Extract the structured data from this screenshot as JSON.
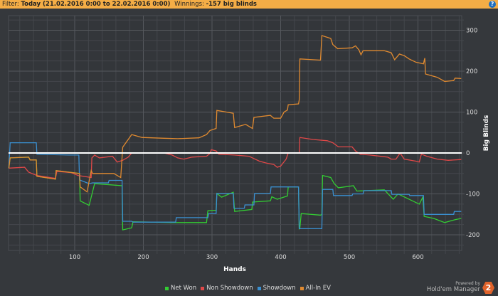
{
  "header": {
    "filter_label": "Filter:",
    "filter_value": "Today (21.02.2016 0:00 to 22.02.2016 0:00)",
    "winnings_label": "Winnings:",
    "winnings_value": "-157 big blinds",
    "help_icon": "question-circle-icon",
    "help_label": "?"
  },
  "footer": {
    "powered_by": "Powered by",
    "brand": "Hold'em Manager",
    "logo_text": "2"
  },
  "chart_data": {
    "type": "line",
    "xlabel": "Hands",
    "ylabel": "Big Blinds",
    "xlim": [
      3,
      665
    ],
    "ylim": [
      -238,
      335
    ],
    "xticks": [
      100,
      200,
      300,
      400,
      500,
      600
    ],
    "yticks": [
      -200,
      -100,
      0,
      100,
      200,
      300
    ],
    "grid": true,
    "legend_position": "bottom",
    "zero_line_color": "#ffffff",
    "series": [
      {
        "name": "Net Won",
        "color": "#33cc33",
        "points": [
          [
            4,
            -37
          ],
          [
            6,
            -12
          ],
          [
            33,
            -10
          ],
          [
            35,
            -17
          ],
          [
            44,
            -17
          ],
          [
            45,
            -57
          ],
          [
            72,
            -64
          ],
          [
            73,
            -43
          ],
          [
            107,
            -50
          ],
          [
            108,
            -117
          ],
          [
            121,
            -128
          ],
          [
            129,
            -75
          ],
          [
            169,
            -80
          ],
          [
            170,
            -188
          ],
          [
            183,
            -183
          ],
          [
            185,
            -168
          ],
          [
            243,
            -170
          ],
          [
            292,
            -170
          ],
          [
            294,
            -141
          ],
          [
            306,
            -140
          ],
          [
            307,
            -99
          ],
          [
            314,
            -108
          ],
          [
            331,
            -96
          ],
          [
            333,
            -143
          ],
          [
            358,
            -138
          ],
          [
            359,
            -120
          ],
          [
            385,
            -117
          ],
          [
            387,
            -107
          ],
          [
            395,
            -113
          ],
          [
            410,
            -105
          ],
          [
            411,
            -83
          ],
          [
            426,
            -83
          ],
          [
            427,
            -185
          ],
          [
            428,
            -183
          ],
          [
            430,
            -148
          ],
          [
            458,
            -152
          ],
          [
            460,
            -150
          ],
          [
            461,
            -55
          ],
          [
            473,
            -60
          ],
          [
            478,
            -75
          ],
          [
            484,
            -85
          ],
          [
            506,
            -80
          ],
          [
            511,
            -93
          ],
          [
            551,
            -90
          ],
          [
            564,
            -113
          ],
          [
            571,
            -100
          ],
          [
            602,
            -125
          ],
          [
            607,
            -108
          ],
          [
            609,
            -155
          ],
          [
            623,
            -160
          ],
          [
            639,
            -170
          ],
          [
            654,
            -163
          ],
          [
            663,
            -160
          ]
        ]
      },
      {
        "name": "Non Showdown",
        "color": "#e04848",
        "points": [
          [
            4,
            -37
          ],
          [
            27,
            -35
          ],
          [
            33,
            -47
          ],
          [
            45,
            -55
          ],
          [
            64,
            -60
          ],
          [
            72,
            -62
          ],
          [
            74,
            -45
          ],
          [
            95,
            -48
          ],
          [
            105,
            -55
          ],
          [
            124,
            -60
          ],
          [
            125,
            -12
          ],
          [
            129,
            -5
          ],
          [
            136,
            -12
          ],
          [
            155,
            -8
          ],
          [
            162,
            -22
          ],
          [
            170,
            -18
          ],
          [
            178,
            -10
          ],
          [
            183,
            0
          ],
          [
            230,
            0
          ],
          [
            242,
            -5
          ],
          [
            250,
            -12
          ],
          [
            259,
            -15
          ],
          [
            271,
            -10
          ],
          [
            292,
            -8
          ],
          [
            297,
            -1
          ],
          [
            299,
            8
          ],
          [
            306,
            5
          ],
          [
            310,
            -3
          ],
          [
            333,
            -5
          ],
          [
            354,
            -8
          ],
          [
            359,
            -12
          ],
          [
            369,
            -20
          ],
          [
            380,
            -25
          ],
          [
            390,
            -28
          ],
          [
            395,
            -35
          ],
          [
            400,
            -32
          ],
          [
            408,
            -15
          ],
          [
            411,
            0
          ],
          [
            427,
            0
          ],
          [
            428,
            38
          ],
          [
            447,
            33
          ],
          [
            468,
            30
          ],
          [
            476,
            25
          ],
          [
            484,
            15
          ],
          [
            504,
            15
          ],
          [
            509,
            5
          ],
          [
            516,
            -3
          ],
          [
            530,
            -5
          ],
          [
            556,
            -10
          ],
          [
            561,
            -15
          ],
          [
            568,
            -15
          ],
          [
            574,
            0
          ],
          [
            580,
            -15
          ],
          [
            597,
            -20
          ],
          [
            602,
            -22
          ],
          [
            605,
            -3
          ],
          [
            613,
            -8
          ],
          [
            628,
            -15
          ],
          [
            644,
            -18
          ],
          [
            663,
            -16
          ]
        ]
      },
      {
        "name": "Showdown",
        "color": "#3a8fd0",
        "points": [
          [
            4,
            -37
          ],
          [
            6,
            25
          ],
          [
            44,
            25
          ],
          [
            45,
            -3
          ],
          [
            91,
            -5
          ],
          [
            106,
            -5
          ],
          [
            107,
            -66
          ],
          [
            121,
            -75
          ],
          [
            126,
            -73
          ],
          [
            149,
            -73
          ],
          [
            150,
            -67
          ],
          [
            169,
            -67
          ],
          [
            170,
            -167
          ],
          [
            183,
            -167
          ],
          [
            185,
            -169
          ],
          [
            247,
            -169
          ],
          [
            248,
            -158
          ],
          [
            294,
            -158
          ],
          [
            295,
            -148
          ],
          [
            306,
            -148
          ],
          [
            307,
            -99
          ],
          [
            331,
            -99
          ],
          [
            332,
            -135
          ],
          [
            347,
            -135
          ],
          [
            348,
            -127
          ],
          [
            361,
            -127
          ],
          [
            362,
            -99
          ],
          [
            385,
            -99
          ],
          [
            386,
            -83
          ],
          [
            426,
            -83
          ],
          [
            427,
            -185
          ],
          [
            460,
            -185
          ],
          [
            461,
            -89
          ],
          [
            476,
            -89
          ],
          [
            477,
            -104
          ],
          [
            504,
            -104
          ],
          [
            505,
            -100
          ],
          [
            520,
            -100
          ],
          [
            521,
            -92
          ],
          [
            561,
            -92
          ],
          [
            562,
            -101
          ],
          [
            587,
            -101
          ],
          [
            588,
            -104
          ],
          [
            608,
            -104
          ],
          [
            609,
            -150
          ],
          [
            652,
            -150
          ],
          [
            653,
            -143
          ],
          [
            663,
            -143
          ]
        ]
      },
      {
        "name": "All-In EV",
        "color": "#e08a30",
        "points": [
          [
            4,
            -37
          ],
          [
            6,
            -12
          ],
          [
            33,
            -10
          ],
          [
            35,
            -17
          ],
          [
            44,
            -17
          ],
          [
            45,
            -57
          ],
          [
            72,
            -64
          ],
          [
            73,
            -43
          ],
          [
            107,
            -50
          ],
          [
            108,
            -83
          ],
          [
            118,
            -95
          ],
          [
            124,
            -43
          ],
          [
            126,
            -50
          ],
          [
            157,
            -50
          ],
          [
            167,
            -60
          ],
          [
            170,
            14
          ],
          [
            183,
            45
          ],
          [
            198,
            38
          ],
          [
            230,
            36
          ],
          [
            250,
            35
          ],
          [
            281,
            37
          ],
          [
            292,
            45
          ],
          [
            297,
            55
          ],
          [
            306,
            60
          ],
          [
            307,
            104
          ],
          [
            321,
            100
          ],
          [
            331,
            97
          ],
          [
            333,
            62
          ],
          [
            349,
            70
          ],
          [
            359,
            60
          ],
          [
            361,
            87
          ],
          [
            385,
            92
          ],
          [
            390,
            85
          ],
          [
            400,
            85
          ],
          [
            405,
            100
          ],
          [
            410,
            105
          ],
          [
            411,
            118
          ],
          [
            426,
            120
          ],
          [
            427,
            130
          ],
          [
            428,
            230
          ],
          [
            458,
            227
          ],
          [
            460,
            287
          ],
          [
            473,
            280
          ],
          [
            476,
            265
          ],
          [
            483,
            255
          ],
          [
            504,
            257
          ],
          [
            509,
            262
          ],
          [
            514,
            252
          ],
          [
            517,
            240
          ],
          [
            520,
            250
          ],
          [
            551,
            250
          ],
          [
            561,
            245
          ],
          [
            566,
            228
          ],
          [
            573,
            242
          ],
          [
            580,
            238
          ],
          [
            587,
            230
          ],
          [
            597,
            222
          ],
          [
            608,
            218
          ],
          [
            610,
            232
          ],
          [
            611,
            193
          ],
          [
            628,
            185
          ],
          [
            639,
            175
          ],
          [
            652,
            177
          ],
          [
            654,
            183
          ],
          [
            663,
            182
          ]
        ]
      }
    ]
  }
}
